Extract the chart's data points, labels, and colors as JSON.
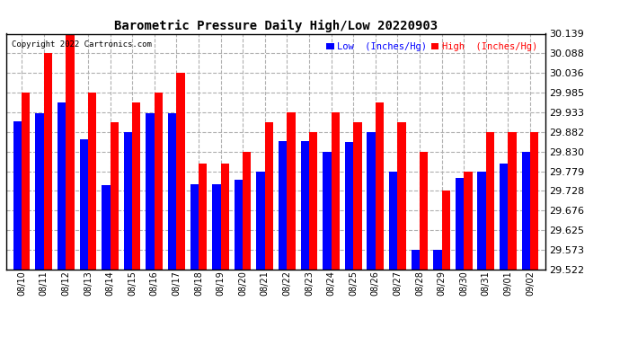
{
  "title": "Barometric Pressure Daily High/Low 20220903",
  "copyright": "Copyright 2022 Cartronics.com",
  "legend_low": "Low  (Inches/Hg)",
  "legend_high": "High  (Inches/Hg)",
  "dates": [
    "08/10",
    "08/11",
    "08/12",
    "08/13",
    "08/14",
    "08/15",
    "08/16",
    "08/17",
    "08/18",
    "08/19",
    "08/20",
    "08/21",
    "08/22",
    "08/23",
    "08/24",
    "08/25",
    "08/26",
    "08/27",
    "08/28",
    "08/29",
    "08/30",
    "08/31",
    "09/01",
    "09/02"
  ],
  "low_values": [
    29.91,
    29.93,
    29.96,
    29.862,
    29.744,
    29.882,
    29.93,
    29.93,
    29.745,
    29.745,
    29.757,
    29.779,
    29.858,
    29.858,
    29.83,
    29.855,
    29.882,
    29.779,
    29.573,
    29.573,
    29.762,
    29.779,
    29.8,
    29.83
  ],
  "high_values": [
    29.985,
    30.088,
    30.139,
    29.985,
    29.907,
    29.96,
    29.985,
    30.036,
    29.8,
    29.8,
    29.83,
    29.907,
    29.933,
    29.882,
    29.933,
    29.907,
    29.96,
    29.907,
    29.83,
    29.728,
    29.779,
    29.882,
    29.882,
    29.882
  ],
  "ymin": 29.522,
  "ymax": 30.139,
  "yticks": [
    29.522,
    29.573,
    29.625,
    29.676,
    29.728,
    29.779,
    29.83,
    29.882,
    29.933,
    29.985,
    30.036,
    30.088,
    30.139
  ],
  "background_color": "#ffffff",
  "low_color": "#0000ff",
  "high_color": "#ff0000",
  "grid_color": "#b0b0b0",
  "title_color": "#000000",
  "copyright_color": "#000000",
  "bar_width": 0.38,
  "figwidth": 6.9,
  "figheight": 3.75,
  "dpi": 100
}
